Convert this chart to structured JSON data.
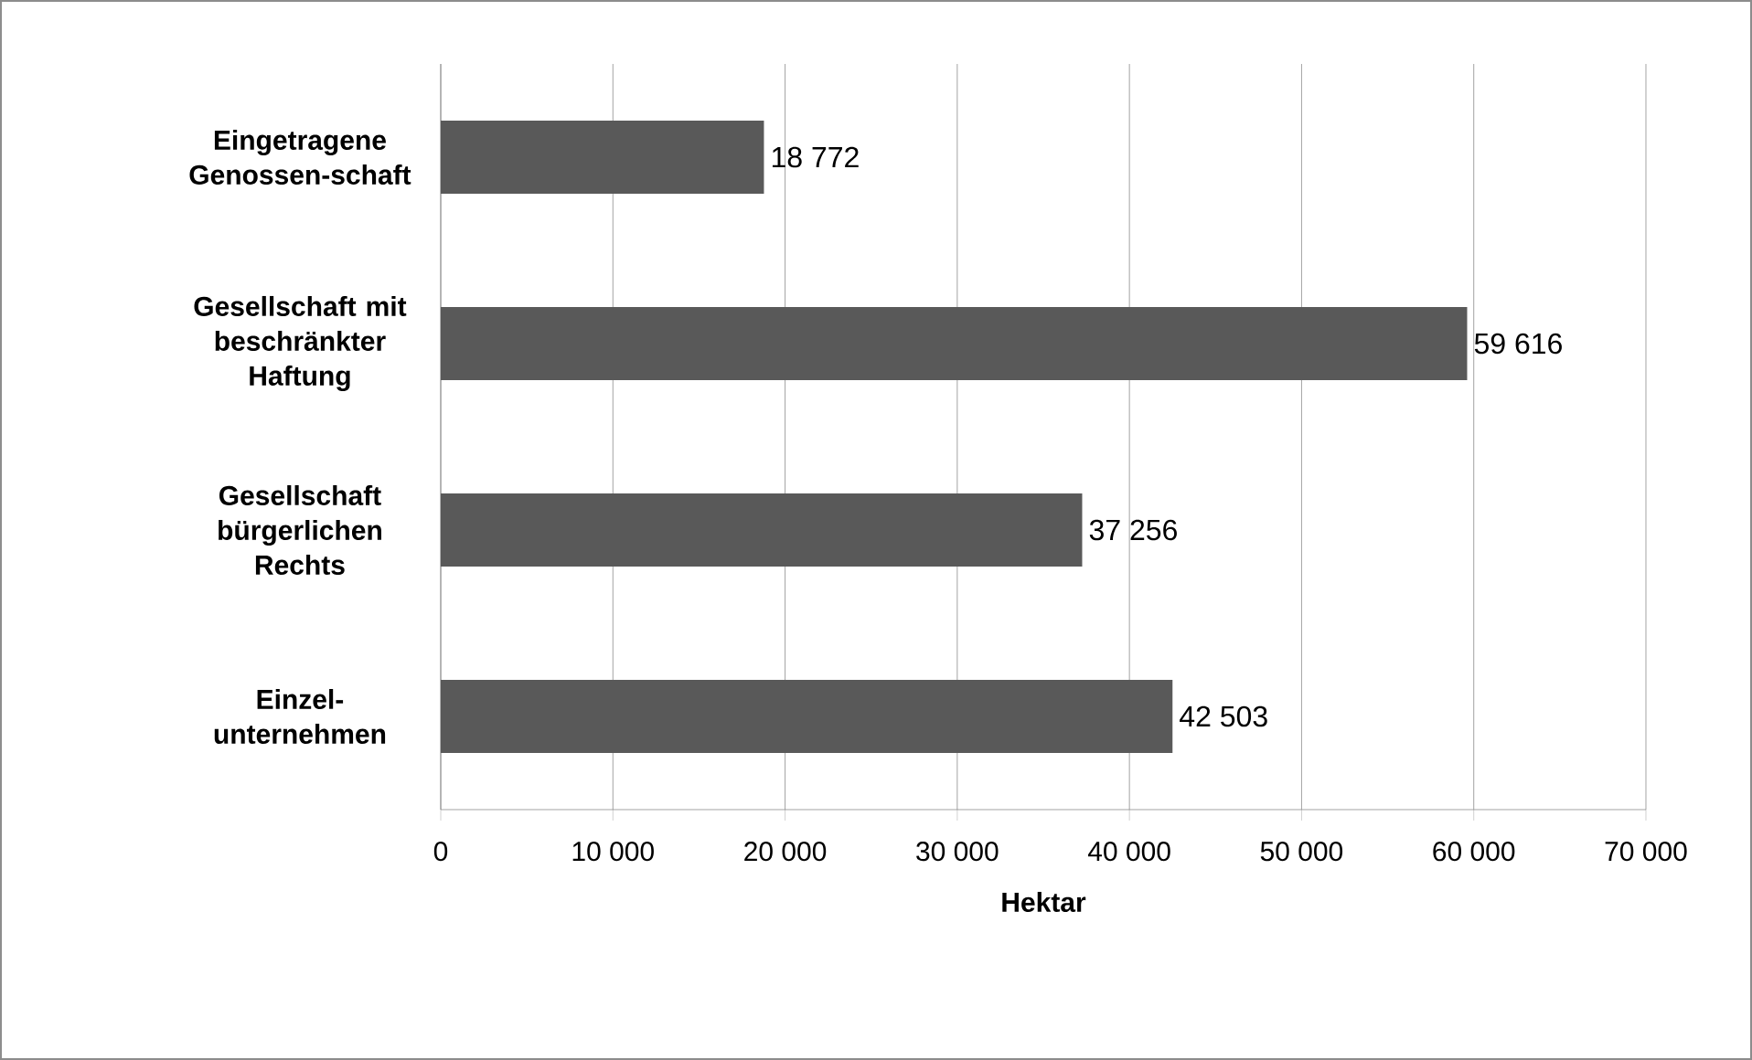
{
  "chart_data": {
    "type": "bar",
    "orientation": "horizontal",
    "xlabel": "Hektar",
    "categories": [
      "Eingetragene Genossen-schaft",
      "Gesellschaft mit beschränkter Haftung",
      "Gesellschaft bürgerlichen Rechts",
      "Einzel-unternehmen"
    ],
    "values": [
      18772,
      59616,
      37256,
      42503
    ],
    "value_labels": [
      "18 772",
      "59 616",
      "37 256",
      "42 503"
    ],
    "color": "#595959",
    "xlim": [
      0,
      70000
    ],
    "xticks": [
      0,
      {
        "value": 10000,
        "label": "10 000"
      },
      {
        "value": 20000,
        "label": "20 000"
      },
      {
        "value": 30000,
        "label": "30 000"
      },
      {
        "value": 40000,
        "label": "40 000"
      },
      {
        "value": 50000,
        "label": "50 000"
      },
      {
        "value": 60000,
        "label": "60 000"
      },
      {
        "value": 70000,
        "label": "70 000"
      }
    ],
    "grid": "x"
  }
}
